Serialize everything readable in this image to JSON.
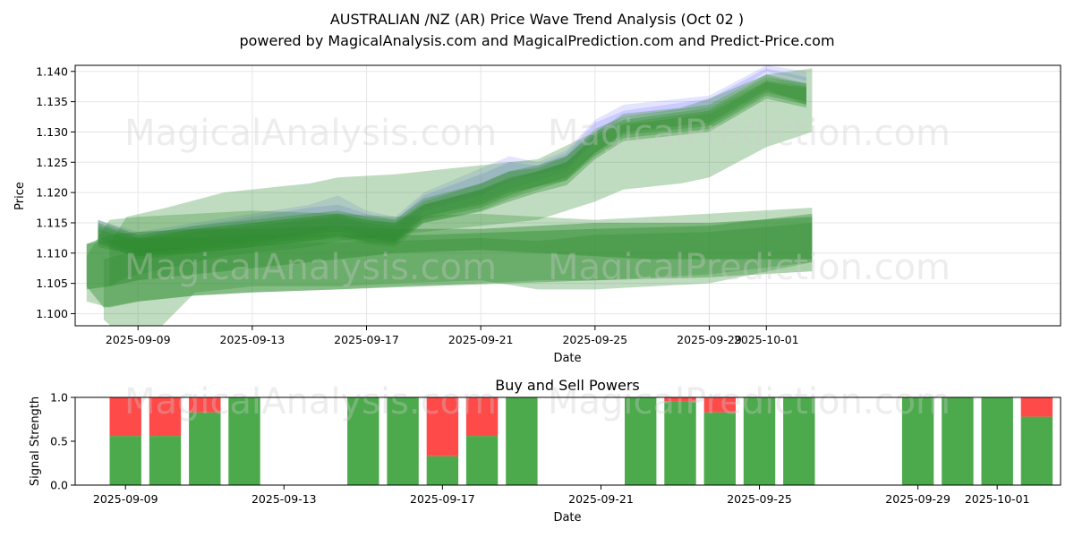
{
  "title_line1": "AUSTRALIAN /NZ (AR) Price Wave Trend Analysis (Oct 02 )",
  "title_line2": "powered by MagicalAnalysis.com and MagicalPrediction.com and Predict-Price.com",
  "watermarks": [
    "MagicalAnalysis.com",
    "MagicalPrediction.com"
  ],
  "colors": {
    "green": "#2e8b2e",
    "blue": "#6a6aff",
    "buy": "#4caa4c",
    "sell": "#ff4a4a"
  },
  "chart_data": [
    {
      "type": "area",
      "title": "",
      "xlabel": "Date",
      "ylabel": "Price",
      "ylim": [
        1.098,
        1.141
      ],
      "xlim": [
        -2.2,
        32.3
      ],
      "x_ticks": [
        {
          "day": 0,
          "label": "2025-09-09"
        },
        {
          "day": 4,
          "label": "2025-09-13"
        },
        {
          "day": 8,
          "label": "2025-09-17"
        },
        {
          "day": 12,
          "label": "2025-09-21"
        },
        {
          "day": 16,
          "label": "2025-09-25"
        },
        {
          "day": 20,
          "label": "2025-09-29"
        },
        {
          "day": 22,
          "label": "2025-10-01"
        }
      ],
      "y_ticks": [
        {
          "value": 1.1,
          "label": "1.100"
        },
        {
          "value": 1.105,
          "label": "1.105"
        },
        {
          "value": 1.11,
          "label": "1.110"
        },
        {
          "value": 1.115,
          "label": "1.115"
        },
        {
          "value": 1.12,
          "label": "1.120"
        },
        {
          "value": 1.125,
          "label": "1.125"
        },
        {
          "value": 1.13,
          "label": "1.130"
        },
        {
          "value": 1.135,
          "label": "1.135"
        },
        {
          "value": 1.14,
          "label": "1.140"
        }
      ],
      "bands": [
        {
          "color": "blue",
          "opacity": 0.18,
          "x": [
            -1.4,
            0,
            2,
            4,
            6,
            7,
            8,
            9,
            10,
            12,
            13,
            14,
            15,
            16,
            17,
            20,
            22,
            23.4
          ],
          "lower": [
            1.1125,
            1.1095,
            1.1105,
            1.1115,
            1.1135,
            1.1145,
            1.113,
            1.112,
            1.117,
            1.1195,
            1.122,
            1.123,
            1.124,
            1.129,
            1.1325,
            1.134,
            1.14,
            1.1385
          ],
          "upper": [
            1.1155,
            1.1135,
            1.115,
            1.1165,
            1.118,
            1.1195,
            1.117,
            1.116,
            1.12,
            1.124,
            1.126,
            1.125,
            1.127,
            1.132,
            1.1345,
            1.136,
            1.141,
            1.14
          ]
        },
        {
          "color": "blue",
          "opacity": 0.2,
          "x": [
            -1.4,
            0,
            2,
            4,
            6,
            7,
            8,
            9,
            10,
            12,
            13,
            14,
            15,
            16,
            17,
            20,
            22,
            23.4
          ],
          "lower": [
            1.112,
            1.11,
            1.111,
            1.112,
            1.113,
            1.114,
            1.1125,
            1.1118,
            1.116,
            1.1185,
            1.1205,
            1.122,
            1.1235,
            1.1285,
            1.1315,
            1.133,
            1.139,
            1.137
          ],
          "upper": [
            1.115,
            1.113,
            1.1145,
            1.116,
            1.1175,
            1.118,
            1.1165,
            1.1155,
            1.1195,
            1.123,
            1.125,
            1.1245,
            1.1265,
            1.1315,
            1.1335,
            1.1355,
            1.1405,
            1.139
          ]
        },
        {
          "color": "green",
          "opacity": 0.3,
          "x": [
            -1.4,
            0,
            2,
            4,
            6,
            7,
            8,
            9,
            10,
            12,
            13,
            14,
            15,
            16,
            17,
            20,
            22,
            23.4
          ],
          "lower": [
            1.112,
            1.109,
            1.11,
            1.111,
            1.112,
            1.1125,
            1.1115,
            1.111,
            1.115,
            1.117,
            1.119,
            1.1205,
            1.122,
            1.1265,
            1.13,
            1.1315,
            1.137,
            1.1345
          ],
          "upper": [
            1.115,
            1.1125,
            1.114,
            1.115,
            1.116,
            1.1165,
            1.1155,
            1.115,
            1.1185,
            1.1215,
            1.1235,
            1.124,
            1.126,
            1.1305,
            1.1325,
            1.1345,
            1.1395,
            1.138
          ]
        },
        {
          "color": "green",
          "opacity": 0.35,
          "x": [
            -1.4,
            0,
            2,
            4,
            6,
            7,
            8,
            9,
            10,
            12,
            13,
            14,
            15,
            16,
            17,
            20,
            22,
            23.4
          ],
          "lower": [
            1.111,
            1.1095,
            1.1105,
            1.1115,
            1.1125,
            1.113,
            1.1118,
            1.1115,
            1.1155,
            1.1175,
            1.1195,
            1.121,
            1.1225,
            1.1265,
            1.1295,
            1.131,
            1.1365,
            1.135
          ],
          "upper": [
            1.114,
            1.112,
            1.1135,
            1.1145,
            1.1155,
            1.116,
            1.115,
            1.1145,
            1.118,
            1.1205,
            1.1225,
            1.1235,
            1.125,
            1.1295,
            1.1315,
            1.1335,
            1.1385,
            1.1375
          ]
        },
        {
          "color": "green",
          "opacity": 0.35,
          "x": [
            -1.4,
            0,
            2,
            4,
            6,
            7,
            8,
            9,
            10,
            12,
            13,
            14,
            15,
            16,
            17,
            20,
            22,
            23.4
          ],
          "lower": [
            1.1125,
            1.11,
            1.111,
            1.112,
            1.113,
            1.1135,
            1.1125,
            1.112,
            1.116,
            1.118,
            1.12,
            1.121,
            1.122,
            1.126,
            1.129,
            1.1305,
            1.136,
            1.1345
          ],
          "upper": [
            1.1155,
            1.113,
            1.1145,
            1.1155,
            1.1165,
            1.117,
            1.116,
            1.1155,
            1.119,
            1.1215,
            1.1235,
            1.1245,
            1.126,
            1.13,
            1.132,
            1.134,
            1.139,
            1.138
          ]
        },
        {
          "color": "green",
          "opacity": 0.35,
          "x": [
            -1.4,
            0,
            2,
            4,
            6,
            7,
            8,
            9,
            10,
            12,
            13,
            14,
            15,
            16,
            17,
            20,
            22,
            23.4
          ],
          "lower": [
            1.1115,
            1.1095,
            1.11,
            1.111,
            1.112,
            1.1128,
            1.112,
            1.1118,
            1.115,
            1.1168,
            1.1185,
            1.12,
            1.1212,
            1.1255,
            1.1285,
            1.13,
            1.1355,
            1.134
          ],
          "upper": [
            1.1145,
            1.1125,
            1.114,
            1.115,
            1.116,
            1.1165,
            1.1155,
            1.115,
            1.118,
            1.1205,
            1.1222,
            1.1235,
            1.125,
            1.129,
            1.1312,
            1.133,
            1.1382,
            1.1372
          ]
        },
        {
          "color": "green",
          "opacity": 0.3,
          "x": [
            -1,
            -0.4,
            1,
            3,
            5,
            6,
            7,
            9,
            11,
            14,
            16,
            17,
            19,
            20,
            21,
            22,
            23.6
          ],
          "lower": [
            1.1045,
            1.106,
            1.1075,
            1.1095,
            1.1105,
            1.111,
            1.112,
            1.113,
            1.114,
            1.1155,
            1.1185,
            1.1205,
            1.1215,
            1.1225,
            1.125,
            1.1275,
            1.13
          ],
          "upper": [
            1.1115,
            1.116,
            1.1175,
            1.12,
            1.121,
            1.1215,
            1.1225,
            1.123,
            1.124,
            1.1255,
            1.13,
            1.133,
            1.134,
            1.1355,
            1.1375,
            1.1395,
            1.1405
          ]
        },
        {
          "color": "green",
          "opacity": 0.3,
          "x": [
            -1.8,
            -1,
            0,
            2,
            4,
            7,
            9,
            12,
            14,
            16,
            18,
            20,
            23.6
          ],
          "lower": [
            1.102,
            1.101,
            1.102,
            1.103,
            1.1035,
            1.104,
            1.1045,
            1.105,
            1.1055,
            1.1055,
            1.106,
            1.1065,
            1.1085
          ],
          "upper": [
            1.1095,
            1.1155,
            1.116,
            1.1165,
            1.117,
            1.1165,
            1.116,
            1.1165,
            1.116,
            1.1155,
            1.116,
            1.1165,
            1.1175
          ]
        },
        {
          "color": "green",
          "opacity": 0.45,
          "x": [
            -1.8,
            -1,
            0,
            2,
            4,
            7,
            9,
            12,
            14,
            16,
            18,
            20,
            23.6
          ],
          "lower": [
            1.104,
            1.1045,
            1.1055,
            1.1065,
            1.1075,
            1.109,
            1.11,
            1.1105,
            1.11,
            1.1095,
            1.109,
            1.109,
            1.109
          ],
          "upper": [
            1.1115,
            1.113,
            1.1135,
            1.114,
            1.114,
            1.1145,
            1.114,
            1.114,
            1.1145,
            1.115,
            1.115,
            1.115,
            1.116
          ]
        },
        {
          "color": "green",
          "opacity": 0.3,
          "x": [
            -1.2,
            0,
            2,
            4,
            7,
            9,
            12,
            14,
            16,
            20,
            23.6
          ],
          "lower": [
            1.099,
            1.094,
            1.1035,
            1.1045,
            1.1045,
            1.105,
            1.1055,
            1.104,
            1.104,
            1.105,
            1.1085
          ],
          "upper": [
            1.109,
            1.1105,
            1.111,
            1.1115,
            1.1118,
            1.112,
            1.1125,
            1.112,
            1.113,
            1.1135,
            1.115
          ]
        },
        {
          "color": "green",
          "opacity": 0.4,
          "x": [
            -1.8,
            -1.2,
            0,
            2,
            4,
            7,
            10,
            13,
            16,
            20,
            23.6
          ],
          "lower": [
            1.1045,
            1.101,
            1.102,
            1.103,
            1.1035,
            1.104,
            1.1045,
            1.105,
            1.1055,
            1.106,
            1.107
          ],
          "upper": [
            1.1115,
            1.112,
            1.1125,
            1.1125,
            1.113,
            1.113,
            1.113,
            1.1135,
            1.114,
            1.1145,
            1.1165
          ]
        }
      ]
    },
    {
      "type": "bar",
      "title": "Buy and Sell Powers",
      "xlabel": "Date",
      "ylabel": "Signal Strength",
      "ylim": [
        0,
        1
      ],
      "xlim": [
        -1.27,
        23.6
      ],
      "x_ticks": [
        {
          "day": 0,
          "label": "2025-09-09"
        },
        {
          "day": 4,
          "label": "2025-09-13"
        },
        {
          "day": 8,
          "label": "2025-09-17"
        },
        {
          "day": 12,
          "label": "2025-09-21"
        },
        {
          "day": 16,
          "label": "2025-09-25"
        },
        {
          "day": 20,
          "label": "2025-09-29"
        },
        {
          "day": 22,
          "label": "2025-10-01"
        }
      ],
      "y_ticks": [
        {
          "value": 0.0,
          "label": "0.0"
        },
        {
          "value": 0.5,
          "label": "0.5"
        },
        {
          "value": 1.0,
          "label": "1.0"
        }
      ],
      "days": [
        0,
        1,
        2,
        3,
        6,
        7,
        8,
        9,
        10,
        13,
        14,
        15,
        16,
        17,
        20,
        21,
        22,
        23
      ],
      "series": [
        {
          "name": "Buy",
          "color": "buy",
          "values": [
            0.56,
            0.56,
            0.83,
            1.0,
            1.0,
            1.0,
            0.33,
            0.56,
            1.0,
            1.0,
            0.95,
            0.83,
            1.0,
            1.0,
            1.0,
            1.0,
            1.0,
            0.78
          ]
        },
        {
          "name": "Sell",
          "color": "sell",
          "values": [
            0.44,
            0.44,
            0.17,
            0.0,
            0.0,
            0.0,
            0.67,
            0.44,
            0.0,
            0.0,
            0.05,
            0.17,
            0.0,
            0.0,
            0.0,
            0.0,
            0.0,
            0.22
          ]
        }
      ]
    }
  ]
}
